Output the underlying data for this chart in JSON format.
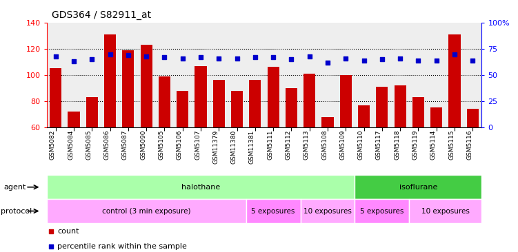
{
  "title": "GDS364 / S82911_at",
  "samples": [
    "GSM5082",
    "GSM5084",
    "GSM5085",
    "GSM5086",
    "GSM5087",
    "GSM5090",
    "GSM5105",
    "GSM5106",
    "GSM5107",
    "GSM11379",
    "GSM11380",
    "GSM11381",
    "GSM5111",
    "GSM5112",
    "GSM5113",
    "GSM5108",
    "GSM5109",
    "GSM5110",
    "GSM5117",
    "GSM5118",
    "GSM5119",
    "GSM5114",
    "GSM5115",
    "GSM5116"
  ],
  "counts": [
    105,
    72,
    83,
    131,
    119,
    123,
    99,
    88,
    107,
    96,
    88,
    96,
    106,
    90,
    101,
    68,
    100,
    77,
    91,
    92,
    83,
    75,
    131,
    74
  ],
  "percentiles": [
    68,
    63,
    65,
    70,
    69,
    68,
    67,
    66,
    67,
    66,
    66,
    67,
    67,
    65,
    68,
    62,
    66,
    64,
    65,
    66,
    64,
    64,
    70,
    64
  ],
  "ylim_left": [
    60,
    140
  ],
  "ylim_right": [
    0,
    100
  ],
  "yticks_left": [
    60,
    80,
    100,
    120,
    140
  ],
  "yticks_right": [
    0,
    25,
    50,
    75,
    100
  ],
  "ytick_labels_right": [
    "0",
    "25",
    "50",
    "75",
    "100%"
  ],
  "bar_color": "#CC0000",
  "dot_color": "#0000CC",
  "background_color": "#FFFFFF",
  "plot_bg_color": "#EEEEEE",
  "agent_groups": [
    {
      "label": "halothane",
      "start": 0,
      "end": 17,
      "color": "#AAFFAA"
    },
    {
      "label": "isoflurane",
      "start": 17,
      "end": 24,
      "color": "#44CC44"
    }
  ],
  "protocol_groups": [
    {
      "label": "control (3 min exposure)",
      "start": 0,
      "end": 11,
      "color": "#FFAAFF"
    },
    {
      "label": "5 exposures",
      "start": 11,
      "end": 14,
      "color": "#FF88FF"
    },
    {
      "label": "10 exposures",
      "start": 14,
      "end": 17,
      "color": "#FFAAFF"
    },
    {
      "label": "5 exposures",
      "start": 17,
      "end": 20,
      "color": "#FF88FF"
    },
    {
      "label": "10 exposures",
      "start": 20,
      "end": 24,
      "color": "#FFAAFF"
    }
  ],
  "legend_items": [
    {
      "label": "count",
      "color": "#CC0000"
    },
    {
      "label": "percentile rank within the sample",
      "color": "#0000CC"
    }
  ]
}
